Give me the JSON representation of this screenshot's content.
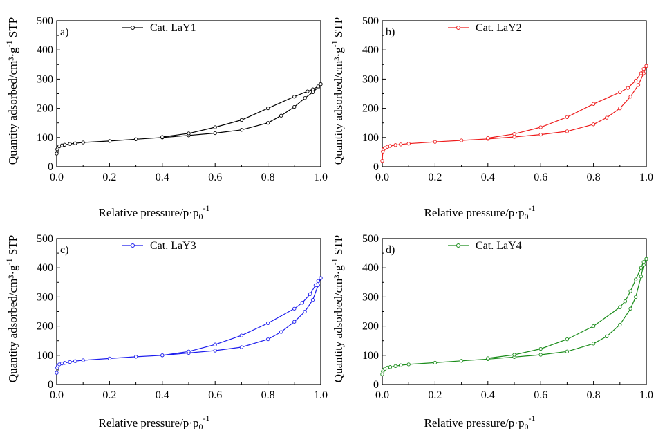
{
  "chart_data": [
    {
      "type": "line",
      "panel_label": "a)",
      "color": "#000000",
      "legend": "Cat. LaY1",
      "xlabel_main": "Relative pressure/p·p",
      "xlabel_sub": "0",
      "xlabel_sup": "-1",
      "ylabel_main": "Quantity adsorbed/cm³·g",
      "ylabel_sup": "-1",
      "ylabel_tail": " STP",
      "xlim": [
        0,
        1
      ],
      "ylim": [
        0,
        500
      ],
      "xticks": [
        "0.0",
        "0.2",
        "0.4",
        "0.6",
        "0.8",
        "1.0"
      ],
      "yticks": [
        "0",
        "100",
        "200",
        "300",
        "400",
        "500"
      ],
      "series": [
        {
          "x": [
            0.0,
            0.002,
            0.005,
            0.01,
            0.02,
            0.03,
            0.05,
            0.07,
            0.1,
            0.2,
            0.3,
            0.4,
            0.5,
            0.6,
            0.7,
            0.8,
            0.85,
            0.9,
            0.94,
            0.97,
            0.99,
            1.0
          ],
          "y": [
            45,
            60,
            66,
            70,
            73,
            75,
            78,
            80,
            83,
            88,
            94,
            100,
            107,
            115,
            126,
            150,
            175,
            205,
            235,
            255,
            272,
            283
          ]
        },
        {
          "x": [
            1.0,
            0.99,
            0.97,
            0.95,
            0.9,
            0.8,
            0.7,
            0.6,
            0.5,
            0.4
          ],
          "y": [
            283,
            275,
            265,
            258,
            240,
            200,
            160,
            135,
            114,
            102
          ]
        }
      ]
    },
    {
      "type": "line",
      "panel_label": "b)",
      "color": "#ee1c1c",
      "legend": "Cat. LaY2",
      "xlabel_main": "Relative pressure/p·p",
      "xlabel_sub": "0",
      "xlabel_sup": "-1",
      "ylabel_main": "Quantity adsorbed/cm³·g",
      "ylabel_sup": "-1",
      "ylabel_tail": " STP",
      "xlim": [
        0,
        1
      ],
      "ylim": [
        0,
        500
      ],
      "xticks": [
        "0.0",
        "0.2",
        "0.4",
        "0.6",
        "0.8",
        "1.0"
      ],
      "yticks": [
        "0",
        "100",
        "200",
        "300",
        "400",
        "500"
      ],
      "series": [
        {
          "x": [
            0.0,
            0.002,
            0.005,
            0.01,
            0.02,
            0.03,
            0.05,
            0.07,
            0.1,
            0.2,
            0.3,
            0.4,
            0.5,
            0.6,
            0.7,
            0.8,
            0.85,
            0.9,
            0.94,
            0.97,
            0.99,
            1.0
          ],
          "y": [
            20,
            52,
            60,
            64,
            68,
            71,
            74,
            76,
            79,
            85,
            90,
            95,
            102,
            110,
            121,
            145,
            168,
            200,
            240,
            280,
            320,
            345
          ]
        },
        {
          "x": [
            1.0,
            0.99,
            0.98,
            0.96,
            0.93,
            0.9,
            0.8,
            0.7,
            0.6,
            0.5,
            0.4
          ],
          "y": [
            345,
            335,
            320,
            295,
            270,
            255,
            215,
            170,
            135,
            112,
            98
          ]
        }
      ]
    },
    {
      "type": "line",
      "panel_label": "c)",
      "color": "#1c1cee",
      "legend": "Cat. LaY3",
      "xlabel_main": "Relative pressure/p·p",
      "xlabel_sub": "0",
      "xlabel_sup": "-1",
      "ylabel_main": "Quantity adsorbed/cm³·g",
      "ylabel_sup": "-1",
      "ylabel_tail": " STP",
      "xlim": [
        0,
        1
      ],
      "ylim": [
        0,
        500
      ],
      "xticks": [
        "0.0",
        "0.2",
        "0.4",
        "0.6",
        "0.8",
        "1.0"
      ],
      "yticks": [
        "0",
        "100",
        "200",
        "300",
        "400",
        "500"
      ],
      "series": [
        {
          "x": [
            0.0,
            0.002,
            0.005,
            0.01,
            0.02,
            0.03,
            0.05,
            0.07,
            0.1,
            0.2,
            0.3,
            0.4,
            0.5,
            0.6,
            0.7,
            0.8,
            0.85,
            0.9,
            0.94,
            0.97,
            0.99,
            1.0
          ],
          "y": [
            40,
            58,
            65,
            69,
            72,
            74,
            77,
            80,
            83,
            89,
            95,
            100,
            108,
            116,
            128,
            155,
            180,
            215,
            250,
            290,
            340,
            365
          ]
        },
        {
          "x": [
            1.0,
            0.99,
            0.98,
            0.96,
            0.93,
            0.9,
            0.8,
            0.7,
            0.6,
            0.5,
            0.4
          ],
          "y": [
            365,
            355,
            340,
            310,
            280,
            260,
            210,
            168,
            137,
            113,
            100
          ]
        }
      ]
    },
    {
      "type": "line",
      "panel_label": "d)",
      "color": "#1a8c1a",
      "legend": "Cat. LaY4",
      "xlabel_main": "Relative pressure/p·p",
      "xlabel_sub": "0",
      "xlabel_sup": "-1",
      "ylabel_main": "Quantity adsorbed/cm³·g",
      "ylabel_sup": "-1",
      "ylabel_tail": " STP",
      "xlim": [
        0,
        1
      ],
      "ylim": [
        0,
        500
      ],
      "xticks": [
        "0.0",
        "0.2",
        "0.4",
        "0.6",
        "0.8",
        "1.0"
      ],
      "yticks": [
        "0",
        "100",
        "200",
        "300",
        "400",
        "500"
      ],
      "series": [
        {
          "x": [
            0.0,
            0.002,
            0.005,
            0.01,
            0.02,
            0.03,
            0.05,
            0.07,
            0.1,
            0.2,
            0.3,
            0.4,
            0.5,
            0.6,
            0.7,
            0.8,
            0.85,
            0.9,
            0.94,
            0.96,
            0.98,
            0.99,
            1.0
          ],
          "y": [
            35,
            45,
            50,
            54,
            58,
            60,
            63,
            66,
            69,
            75,
            81,
            87,
            94,
            102,
            113,
            140,
            165,
            205,
            260,
            300,
            370,
            410,
            430
          ]
        },
        {
          "x": [
            1.0,
            0.99,
            0.98,
            0.96,
            0.94,
            0.92,
            0.9,
            0.8,
            0.7,
            0.6,
            0.5,
            0.4
          ],
          "y": [
            430,
            420,
            400,
            360,
            320,
            285,
            265,
            200,
            155,
            122,
            102,
            90
          ]
        }
      ]
    }
  ]
}
